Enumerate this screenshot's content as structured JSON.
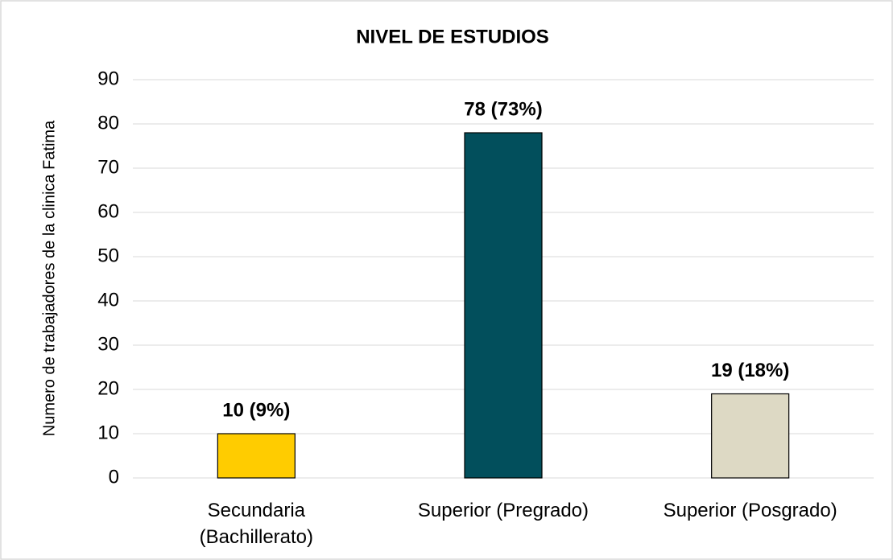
{
  "chart_data": {
    "type": "bar",
    "title": "NIVEL DE ESTUDIOS",
    "y_label": "Numero de trabajadores de la clinica Fatima",
    "categories": [
      "Secundaria\n(Bachillerato)",
      "Superior (Pregrado)",
      "Superior (Posgrado)"
    ],
    "values": [
      10,
      78,
      19
    ],
    "value_labels": [
      "10 (9%)",
      "78 (73%)",
      "19 (18%)"
    ],
    "colors": [
      "#ffcc00",
      "#024f5c",
      "#ddd9c4"
    ],
    "ylim": [
      0,
      90
    ],
    "yticks": [
      0,
      10,
      20,
      30,
      40,
      50,
      60,
      70,
      80,
      90
    ],
    "grid": true
  }
}
